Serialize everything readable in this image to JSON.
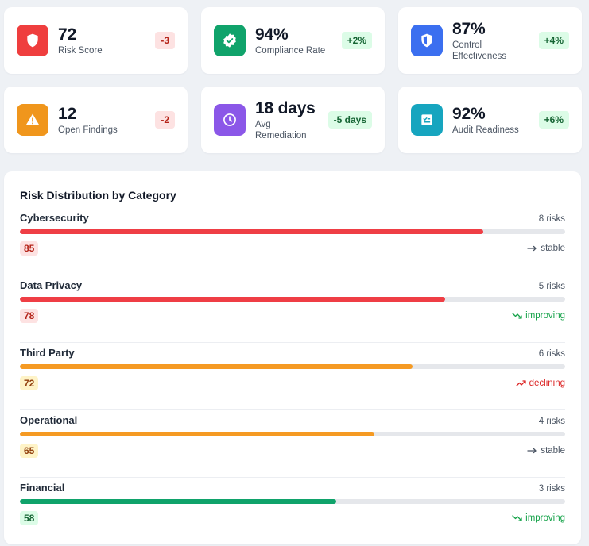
{
  "kpis": [
    {
      "value": "72",
      "label": "Risk Score",
      "delta": "-3",
      "icon": "shield-icon",
      "icon_bg": "#ef3e3e",
      "delta_tone": "red"
    },
    {
      "value": "94%",
      "label": "Compliance Rate",
      "delta": "+2%",
      "icon": "badge-check-icon",
      "icon_bg": "#10a36b",
      "delta_tone": "green"
    },
    {
      "value": "87%",
      "label": "Control Effectiveness",
      "delta": "+4%",
      "icon": "shield-half-icon",
      "icon_bg": "#3b6ff0",
      "delta_tone": "green"
    },
    {
      "value": "12",
      "label": "Open Findings",
      "delta": "-2",
      "icon": "warning-triangle-icon",
      "icon_bg": "#f0961c",
      "delta_tone": "red"
    },
    {
      "value": "18 days",
      "label": "Avg Remediation",
      "delta": "-5 days",
      "icon": "clock-icon",
      "icon_bg": "#8b57e8",
      "delta_tone": "green"
    },
    {
      "value": "92%",
      "label": "Audit Readiness",
      "delta": "+6%",
      "icon": "checklist-icon",
      "icon_bg": "#16a5bf",
      "delta_tone": "green"
    }
  ],
  "distribution": {
    "title": "Risk Distribution by Category",
    "categories": [
      {
        "name": "Cybersecurity",
        "count": "8 risks",
        "score": "85",
        "score_value": 85,
        "trend": "stable",
        "trend_icon": "arrow-right-icon",
        "color": "#ef3e45",
        "badge_bg": "#fde2e2",
        "badge_fg": "#b42318",
        "trend_color": "#4b5563"
      },
      {
        "name": "Data Privacy",
        "count": "5 risks",
        "score": "78",
        "score_value": 78,
        "trend": "improving",
        "trend_icon": "trend-down-icon",
        "color": "#ef3e45",
        "badge_bg": "#fde2e2",
        "badge_fg": "#b42318",
        "trend_color": "#16a34a"
      },
      {
        "name": "Third Party",
        "count": "6 risks",
        "score": "72",
        "score_value": 72,
        "trend": "declining",
        "trend_icon": "trend-up-icon",
        "color": "#f59a23",
        "badge_bg": "#fef3c7",
        "badge_fg": "#92400e",
        "trend_color": "#dc2626"
      },
      {
        "name": "Operational",
        "count": "4 risks",
        "score": "65",
        "score_value": 65,
        "trend": "stable",
        "trend_icon": "arrow-right-icon",
        "color": "#f59a23",
        "badge_bg": "#fef3c7",
        "badge_fg": "#92400e",
        "trend_color": "#4b5563"
      },
      {
        "name": "Financial",
        "count": "3 risks",
        "score": "58",
        "score_value": 58,
        "trend": "improving",
        "trend_icon": "trend-down-icon",
        "color": "#10a36b",
        "badge_bg": "#dcfce7",
        "badge_fg": "#166534",
        "trend_color": "#16a34a"
      }
    ]
  }
}
